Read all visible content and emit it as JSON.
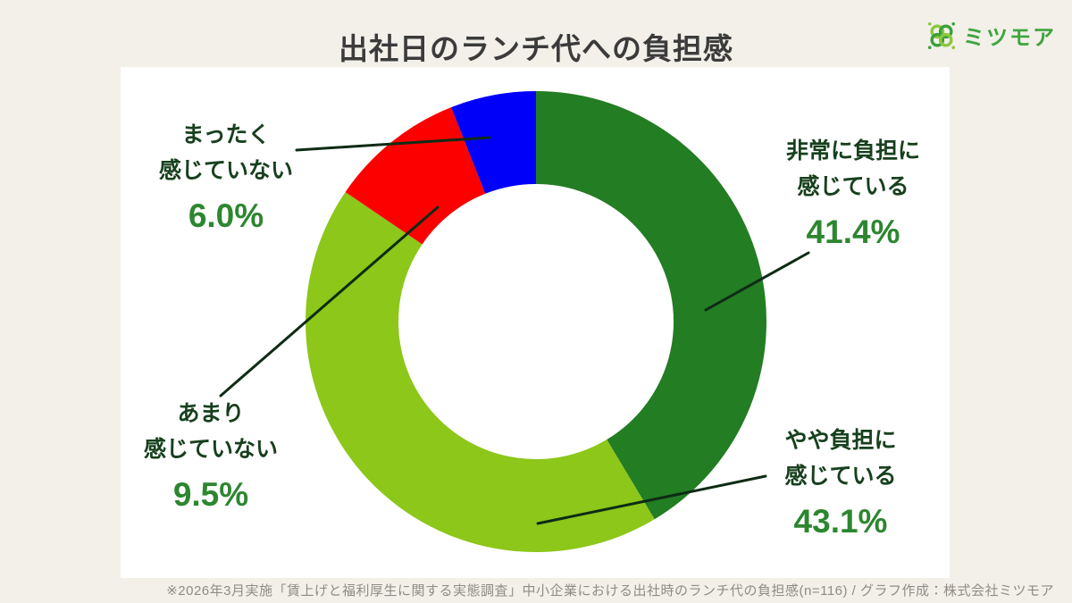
{
  "page": {
    "background": "#f2f0e9"
  },
  "header": {
    "title": "出社日のランチ代への負担感",
    "title_color": "#3b3b3b"
  },
  "brand": {
    "name": "ミツモア",
    "color": "#3fa53f",
    "icon": "clover-icon",
    "icon_colors": {
      "light": "#8dc63f",
      "dark": "#3aa03a"
    }
  },
  "footer": {
    "note": "※2026年3月実施「賃上げと福利厚生に関する実態調査」中小企業における出社時のランチ代の負担感(n=116) / グラフ作成：株式会社ミツモア",
    "color": "#908c85"
  },
  "chart_data": {
    "type": "pie",
    "subtype": "donut",
    "title": "出社日のランチ代への負担感",
    "start_angle_deg": 0,
    "direction": "clockwise",
    "total": 100,
    "label_color": "#17401d",
    "value_color": "#2d8630",
    "leader_line_color": "#0e2b15",
    "segments": [
      {
        "key": "very-burdened",
        "label": "非常に負担に感じている",
        "label_lines": [
          "非常に負担に",
          "感じている"
        ],
        "value": 41.4,
        "display": "41.4%",
        "color": "#237d23"
      },
      {
        "key": "somewhat-burdened",
        "label": "やや負担に感じている",
        "label_lines": [
          "やや負担に",
          "感じている"
        ],
        "value": 43.1,
        "display": "43.1%",
        "color": "#8cc71a"
      },
      {
        "key": "not-much",
        "label": "あまり感じていない",
        "label_lines": [
          "あまり",
          "感じていない"
        ],
        "value": 9.5,
        "display": "9.5%",
        "color": "#fc0000"
      },
      {
        "key": "not-at-all",
        "label": "まったく感じていない",
        "label_lines": [
          "まったく",
          "感じていない"
        ],
        "value": 6.0,
        "display": "6.0%",
        "color": "#0000fa"
      }
    ]
  }
}
